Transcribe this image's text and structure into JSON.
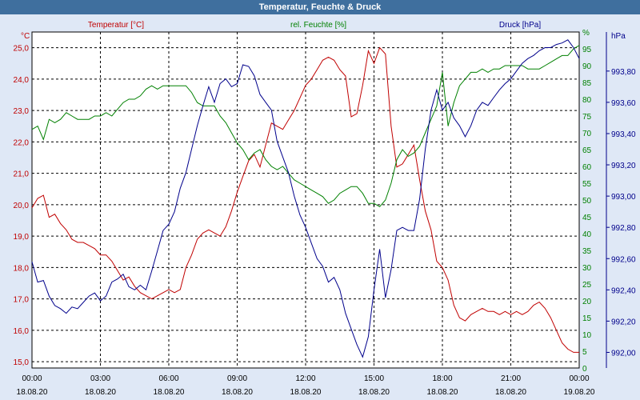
{
  "window": {
    "title": "Temperatur, Feuchte & Druck"
  },
  "colors": {
    "temperature": "#c00000",
    "humidity": "#008000",
    "pressure": "#00008b",
    "background": "#dfe8f6",
    "plot_bg": "#ffffff"
  },
  "chart_data": {
    "type": "line",
    "title": "Temperatur, Feuchte & Druck",
    "grid": true,
    "x_labels": [
      {
        "time": "00:00",
        "date": "18.08.20"
      },
      {
        "time": "03:00",
        "date": "18.08.20"
      },
      {
        "time": "06:00",
        "date": "18.08.20"
      },
      {
        "time": "09:00",
        "date": "18.08.20"
      },
      {
        "time": "12:00",
        "date": "18.08.20"
      },
      {
        "time": "15:00",
        "date": "18.08.20"
      },
      {
        "time": "18:00",
        "date": "18.08.20"
      },
      {
        "time": "21:00",
        "date": "18.08.20"
      },
      {
        "time": "00:00",
        "date": "19.08.20"
      }
    ],
    "x_range_hours": [
      0,
      24
    ],
    "axes": {
      "temperature": {
        "unit": "°C",
        "label": "Temperatur [°C]",
        "ylim": [
          14.8,
          25.5
        ],
        "ticks": [
          "15,0",
          "16,0",
          "17,0",
          "18,0",
          "19,0",
          "20,0",
          "21,0",
          "22,0",
          "23,0",
          "24,0",
          "25,0"
        ]
      },
      "humidity": {
        "unit": "%",
        "label": "rel. Feuchte [%]",
        "ylim": [
          0,
          100
        ],
        "ticks": [
          "0",
          "5",
          "10",
          "15",
          "20",
          "25",
          "30",
          "35",
          "40",
          "45",
          "50",
          "55",
          "60",
          "65",
          "70",
          "75",
          "80",
          "85",
          "90",
          "95",
          "%"
        ]
      },
      "pressure": {
        "unit": "hPa",
        "label": "Druck [hPa]",
        "ylim": [
          991.9,
          994.05
        ],
        "ticks": [
          "992,00",
          "992,20",
          "992,40",
          "992,60",
          "992,80",
          "993,00",
          "993,20",
          "993,40",
          "993,60",
          "993,80"
        ]
      }
    },
    "series": [
      {
        "name": "Temperatur [°C]",
        "axis": "temperature",
        "points": [
          [
            0,
            19.9
          ],
          [
            0.25,
            20.2
          ],
          [
            0.5,
            20.3
          ],
          [
            0.75,
            19.6
          ],
          [
            1,
            19.7
          ],
          [
            1.25,
            19.4
          ],
          [
            1.5,
            19.2
          ],
          [
            1.75,
            18.9
          ],
          [
            2,
            18.8
          ],
          [
            2.25,
            18.8
          ],
          [
            2.5,
            18.7
          ],
          [
            2.75,
            18.6
          ],
          [
            3,
            18.4
          ],
          [
            3.25,
            18.4
          ],
          [
            3.5,
            18.2
          ],
          [
            3.75,
            17.9
          ],
          [
            4,
            17.6
          ],
          [
            4.25,
            17.7
          ],
          [
            4.5,
            17.4
          ],
          [
            4.75,
            17.2
          ],
          [
            5,
            17.1
          ],
          [
            5.25,
            17.0
          ],
          [
            5.5,
            17.1
          ],
          [
            5.75,
            17.2
          ],
          [
            6,
            17.3
          ],
          [
            6.25,
            17.2
          ],
          [
            6.5,
            17.3
          ],
          [
            6.75,
            18.0
          ],
          [
            7,
            18.4
          ],
          [
            7.25,
            18.9
          ],
          [
            7.5,
            19.1
          ],
          [
            7.75,
            19.2
          ],
          [
            8,
            19.1
          ],
          [
            8.25,
            19.0
          ],
          [
            8.5,
            19.3
          ],
          [
            8.75,
            19.8
          ],
          [
            9,
            20.4
          ],
          [
            9.25,
            20.9
          ],
          [
            9.5,
            21.4
          ],
          [
            9.75,
            21.6
          ],
          [
            10,
            21.2
          ],
          [
            10.25,
            21.9
          ],
          [
            10.5,
            22.6
          ],
          [
            10.75,
            22.5
          ],
          [
            11,
            22.4
          ],
          [
            11.25,
            22.7
          ],
          [
            11.5,
            23.0
          ],
          [
            11.75,
            23.4
          ],
          [
            12,
            23.8
          ],
          [
            12.25,
            24.0
          ],
          [
            12.5,
            24.3
          ],
          [
            12.75,
            24.6
          ],
          [
            13,
            24.7
          ],
          [
            13.25,
            24.6
          ],
          [
            13.5,
            24.3
          ],
          [
            13.75,
            24.1
          ],
          [
            14,
            22.8
          ],
          [
            14.25,
            22.9
          ],
          [
            14.5,
            23.8
          ],
          [
            14.75,
            24.9
          ],
          [
            15,
            24.5
          ],
          [
            15.25,
            25.0
          ],
          [
            15.5,
            24.8
          ],
          [
            15.75,
            22.5
          ],
          [
            16,
            21.2
          ],
          [
            16.25,
            21.3
          ],
          [
            16.5,
            21.6
          ],
          [
            16.75,
            21.9
          ],
          [
            17,
            20.8
          ],
          [
            17.25,
            19.8
          ],
          [
            17.5,
            19.2
          ],
          [
            17.75,
            18.2
          ],
          [
            18,
            18.0
          ],
          [
            18.25,
            17.6
          ],
          [
            18.5,
            16.8
          ],
          [
            18.75,
            16.4
          ],
          [
            19,
            16.3
          ],
          [
            19.25,
            16.5
          ],
          [
            19.5,
            16.6
          ],
          [
            19.75,
            16.7
          ],
          [
            20,
            16.6
          ],
          [
            20.25,
            16.6
          ],
          [
            20.5,
            16.5
          ],
          [
            20.75,
            16.6
          ],
          [
            21,
            16.5
          ],
          [
            21.25,
            16.6
          ],
          [
            21.5,
            16.5
          ],
          [
            21.75,
            16.6
          ],
          [
            22,
            16.8
          ],
          [
            22.25,
            16.9
          ],
          [
            22.5,
            16.7
          ],
          [
            22.75,
            16.4
          ],
          [
            23,
            16.0
          ],
          [
            23.25,
            15.6
          ],
          [
            23.5,
            15.4
          ],
          [
            23.75,
            15.3
          ],
          [
            24,
            15.3
          ]
        ]
      },
      {
        "name": "rel. Feuchte [%]",
        "axis": "humidity",
        "points": [
          [
            0,
            71
          ],
          [
            0.25,
            72
          ],
          [
            0.5,
            68
          ],
          [
            0.75,
            74
          ],
          [
            1,
            73
          ],
          [
            1.25,
            74
          ],
          [
            1.5,
            76
          ],
          [
            1.75,
            75
          ],
          [
            2,
            74
          ],
          [
            2.25,
            74
          ],
          [
            2.5,
            74
          ],
          [
            2.75,
            75
          ],
          [
            3,
            75
          ],
          [
            3.25,
            76
          ],
          [
            3.5,
            75
          ],
          [
            3.75,
            77
          ],
          [
            4,
            79
          ],
          [
            4.25,
            80
          ],
          [
            4.5,
            80
          ],
          [
            4.75,
            81
          ],
          [
            5,
            83
          ],
          [
            5.25,
            84
          ],
          [
            5.5,
            83
          ],
          [
            5.75,
            84
          ],
          [
            6,
            84
          ],
          [
            6.25,
            84
          ],
          [
            6.5,
            84
          ],
          [
            6.75,
            84
          ],
          [
            7,
            82
          ],
          [
            7.25,
            79
          ],
          [
            7.5,
            78
          ],
          [
            7.75,
            78
          ],
          [
            8,
            78
          ],
          [
            8.25,
            75
          ],
          [
            8.5,
            73
          ],
          [
            8.75,
            70
          ],
          [
            9,
            67
          ],
          [
            9.25,
            65
          ],
          [
            9.5,
            62
          ],
          [
            9.75,
            64
          ],
          [
            10,
            65
          ],
          [
            10.25,
            62
          ],
          [
            10.5,
            60
          ],
          [
            10.75,
            59
          ],
          [
            11,
            60
          ],
          [
            11.25,
            58
          ],
          [
            11.5,
            56
          ],
          [
            11.75,
            55
          ],
          [
            12,
            54
          ],
          [
            12.25,
            53
          ],
          [
            12.5,
            52
          ],
          [
            12.75,
            51
          ],
          [
            13,
            49
          ],
          [
            13.25,
            50
          ],
          [
            13.5,
            52
          ],
          [
            13.75,
            53
          ],
          [
            14,
            54
          ],
          [
            14.25,
            54
          ],
          [
            14.5,
            52
          ],
          [
            14.75,
            49
          ],
          [
            15,
            49
          ],
          [
            15.25,
            48
          ],
          [
            15.5,
            50
          ],
          [
            15.75,
            55
          ],
          [
            16,
            62
          ],
          [
            16.25,
            65
          ],
          [
            16.5,
            63
          ],
          [
            16.75,
            64
          ],
          [
            17,
            66
          ],
          [
            17.25,
            70
          ],
          [
            17.5,
            74
          ],
          [
            17.75,
            78
          ],
          [
            18,
            88
          ],
          [
            18.25,
            72
          ],
          [
            18.5,
            79
          ],
          [
            18.75,
            84
          ],
          [
            19,
            86
          ],
          [
            19.25,
            88
          ],
          [
            19.5,
            88
          ],
          [
            19.75,
            89
          ],
          [
            20,
            88
          ],
          [
            20.25,
            89
          ],
          [
            20.5,
            89
          ],
          [
            20.75,
            90
          ],
          [
            21,
            90
          ],
          [
            21.25,
            90
          ],
          [
            21.5,
            90
          ],
          [
            21.75,
            89
          ],
          [
            22,
            89
          ],
          [
            22.25,
            89
          ],
          [
            22.5,
            90
          ],
          [
            22.75,
            91
          ],
          [
            23,
            92
          ],
          [
            23.25,
            93
          ],
          [
            23.5,
            93
          ],
          [
            23.75,
            95
          ],
          [
            24,
            96
          ]
        ]
      },
      {
        "name": "Druck [hPa]",
        "axis": "pressure",
        "points": [
          [
            0,
            992.58
          ],
          [
            0.25,
            992.45
          ],
          [
            0.5,
            992.46
          ],
          [
            0.75,
            992.36
          ],
          [
            1,
            992.3
          ],
          [
            1.25,
            992.28
          ],
          [
            1.5,
            992.25
          ],
          [
            1.75,
            992.29
          ],
          [
            2,
            992.28
          ],
          [
            2.25,
            992.32
          ],
          [
            2.5,
            992.36
          ],
          [
            2.75,
            992.38
          ],
          [
            3,
            992.33
          ],
          [
            3.25,
            992.36
          ],
          [
            3.5,
            992.45
          ],
          [
            3.75,
            992.47
          ],
          [
            4,
            992.5
          ],
          [
            4.25,
            992.42
          ],
          [
            4.5,
            992.4
          ],
          [
            4.75,
            992.43
          ],
          [
            5,
            992.4
          ],
          [
            5.25,
            992.52
          ],
          [
            5.5,
            992.65
          ],
          [
            5.75,
            992.78
          ],
          [
            6,
            992.82
          ],
          [
            6.25,
            992.9
          ],
          [
            6.5,
            993.05
          ],
          [
            6.75,
            993.15
          ],
          [
            7,
            993.3
          ],
          [
            7.25,
            993.45
          ],
          [
            7.5,
            993.58
          ],
          [
            7.75,
            993.7
          ],
          [
            8,
            993.6
          ],
          [
            8.25,
            993.72
          ],
          [
            8.5,
            993.75
          ],
          [
            8.75,
            993.7
          ],
          [
            9,
            993.72
          ],
          [
            9.25,
            993.84
          ],
          [
            9.5,
            993.83
          ],
          [
            9.75,
            993.77
          ],
          [
            10,
            993.65
          ],
          [
            10.25,
            993.6
          ],
          [
            10.5,
            993.55
          ],
          [
            10.75,
            993.35
          ],
          [
            11,
            993.25
          ],
          [
            11.25,
            993.15
          ],
          [
            11.5,
            993.0
          ],
          [
            11.75,
            992.88
          ],
          [
            12,
            992.8
          ],
          [
            12.25,
            992.7
          ],
          [
            12.5,
            992.6
          ],
          [
            12.75,
            992.55
          ],
          [
            13,
            992.45
          ],
          [
            13.25,
            992.48
          ],
          [
            13.5,
            992.4
          ],
          [
            13.75,
            992.25
          ],
          [
            14,
            992.15
          ],
          [
            14.25,
            992.05
          ],
          [
            14.5,
            991.97
          ],
          [
            14.75,
            992.1
          ],
          [
            15,
            992.4
          ],
          [
            15.25,
            992.66
          ],
          [
            15.5,
            992.35
          ],
          [
            15.75,
            992.53
          ],
          [
            16,
            992.78
          ],
          [
            16.25,
            992.8
          ],
          [
            16.5,
            992.78
          ],
          [
            16.75,
            992.78
          ],
          [
            17,
            992.98
          ],
          [
            17.25,
            993.3
          ],
          [
            17.5,
            993.55
          ],
          [
            17.75,
            993.68
          ],
          [
            18,
            993.55
          ],
          [
            18.25,
            993.6
          ],
          [
            18.5,
            993.5
          ],
          [
            18.75,
            993.45
          ],
          [
            19,
            993.38
          ],
          [
            19.25,
            993.45
          ],
          [
            19.5,
            993.55
          ],
          [
            19.75,
            993.6
          ],
          [
            20,
            993.58
          ],
          [
            20.25,
            993.63
          ],
          [
            20.5,
            993.68
          ],
          [
            20.75,
            993.72
          ],
          [
            21,
            993.75
          ],
          [
            21.25,
            993.8
          ],
          [
            21.5,
            993.85
          ],
          [
            21.75,
            993.88
          ],
          [
            22,
            993.9
          ],
          [
            22.25,
            993.93
          ],
          [
            22.5,
            993.95
          ],
          [
            22.75,
            993.95
          ],
          [
            23,
            993.97
          ],
          [
            23.25,
            993.98
          ],
          [
            23.5,
            994.0
          ],
          [
            23.75,
            993.95
          ],
          [
            24,
            993.88
          ]
        ]
      }
    ]
  }
}
